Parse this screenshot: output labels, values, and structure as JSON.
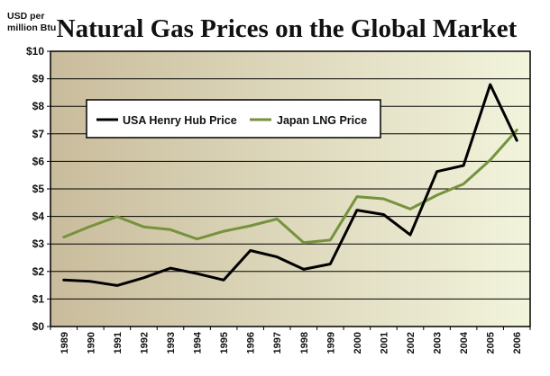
{
  "chart_data": {
    "type": "line",
    "title": "Natural Gas Prices on the Global Market",
    "ylabel": "USD per million Btu",
    "ylabel_lines": [
      "USD per",
      "million Btu"
    ],
    "xlabel": "",
    "ylim": [
      0,
      10
    ],
    "y_ticks": [
      "$0",
      "$1",
      "$2",
      "$3",
      "$4",
      "$5",
      "$6",
      "$7",
      "$8",
      "$9",
      "$10"
    ],
    "x": [
      "1989",
      "1990",
      "1991",
      "1992",
      "1993",
      "1994",
      "1995",
      "1996",
      "1997",
      "1998",
      "1999",
      "2000",
      "2001",
      "2002",
      "2003",
      "2004",
      "2005",
      "2006"
    ],
    "grid": true,
    "legend_position": "top-left",
    "series": [
      {
        "name": "USA Henry Hub Price",
        "color": "#000000",
        "values": [
          1.69,
          1.64,
          1.49,
          1.77,
          2.12,
          1.92,
          1.69,
          2.76,
          2.53,
          2.08,
          2.27,
          4.23,
          4.07,
          3.33,
          5.63,
          5.85,
          8.79,
          6.76
        ]
      },
      {
        "name": "Japan LNG Price",
        "color": "#76923c",
        "values": [
          3.25,
          3.64,
          3.99,
          3.62,
          3.52,
          3.18,
          3.46,
          3.66,
          3.91,
          3.05,
          3.14,
          4.72,
          4.64,
          4.27,
          4.77,
          5.18,
          6.05,
          7.14
        ]
      }
    ],
    "background_colors": [
      "#c9bc9c",
      "#f2f4dc"
    ]
  }
}
